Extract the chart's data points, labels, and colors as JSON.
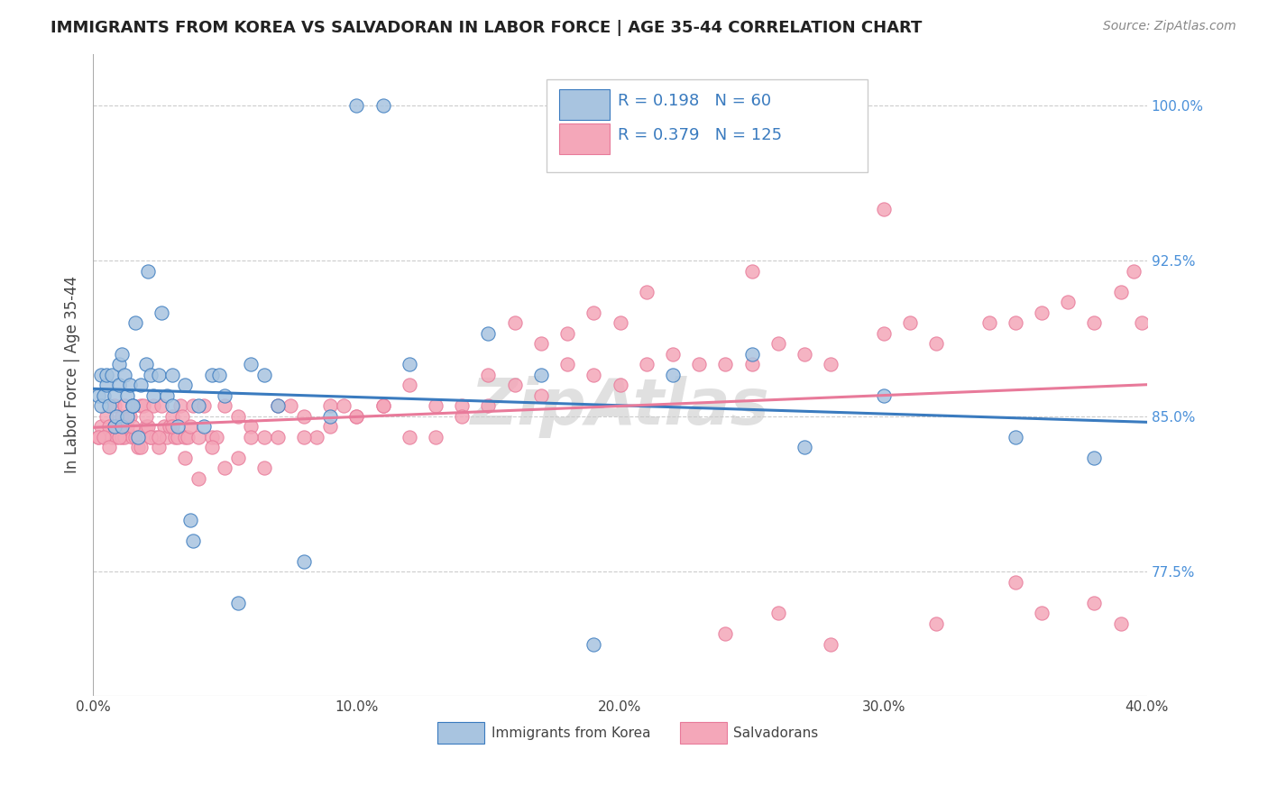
{
  "title": "IMMIGRANTS FROM KOREA VS SALVADORAN IN LABOR FORCE | AGE 35-44 CORRELATION CHART",
  "source": "Source: ZipAtlas.com",
  "ylabel": "In Labor Force | Age 35-44",
  "xlim": [
    0.0,
    0.4
  ],
  "ylim": [
    0.715,
    1.025
  ],
  "xticks": [
    0.0,
    0.05,
    0.1,
    0.15,
    0.2,
    0.25,
    0.3,
    0.35,
    0.4
  ],
  "xticklabels": [
    "0.0%",
    "",
    "10.0%",
    "",
    "20.0%",
    "",
    "30.0%",
    "",
    "40.0%"
  ],
  "yticks_right": [
    0.775,
    0.85,
    0.925,
    1.0
  ],
  "ytick_labels_right": [
    "77.5%",
    "85.0%",
    "92.5%",
    "100.0%"
  ],
  "korea_R": 0.198,
  "korea_N": 60,
  "salvador_R": 0.379,
  "salvador_N": 125,
  "korea_color": "#a8c4e0",
  "salvador_color": "#f4a7b9",
  "korea_line_color": "#3a7bbf",
  "salvador_line_color": "#e87a9a",
  "watermark": "ZipAtlas",
  "korea_scatter_x": [
    0.002,
    0.003,
    0.003,
    0.004,
    0.005,
    0.005,
    0.006,
    0.007,
    0.008,
    0.008,
    0.009,
    0.01,
    0.01,
    0.011,
    0.011,
    0.012,
    0.013,
    0.013,
    0.014,
    0.015,
    0.015,
    0.016,
    0.017,
    0.018,
    0.02,
    0.021,
    0.022,
    0.023,
    0.025,
    0.026,
    0.028,
    0.03,
    0.03,
    0.032,
    0.035,
    0.037,
    0.038,
    0.04,
    0.042,
    0.045,
    0.048,
    0.05,
    0.055,
    0.06,
    0.065,
    0.07,
    0.08,
    0.09,
    0.1,
    0.11,
    0.12,
    0.15,
    0.17,
    0.19,
    0.22,
    0.25,
    0.3,
    0.35,
    0.38,
    0.27
  ],
  "korea_scatter_y": [
    0.86,
    0.855,
    0.87,
    0.86,
    0.865,
    0.87,
    0.855,
    0.87,
    0.845,
    0.86,
    0.85,
    0.875,
    0.865,
    0.845,
    0.88,
    0.87,
    0.86,
    0.85,
    0.865,
    0.855,
    0.855,
    0.895,
    0.84,
    0.865,
    0.875,
    0.92,
    0.87,
    0.86,
    0.87,
    0.9,
    0.86,
    0.855,
    0.87,
    0.845,
    0.865,
    0.8,
    0.79,
    0.855,
    0.845,
    0.87,
    0.87,
    0.86,
    0.76,
    0.875,
    0.87,
    0.855,
    0.78,
    0.85,
    1.0,
    1.0,
    0.875,
    0.89,
    0.87,
    0.74,
    0.87,
    0.88,
    0.86,
    0.84,
    0.83,
    0.835
  ],
  "salvador_scatter_x": [
    0.002,
    0.003,
    0.004,
    0.005,
    0.006,
    0.007,
    0.008,
    0.009,
    0.01,
    0.011,
    0.011,
    0.012,
    0.013,
    0.014,
    0.015,
    0.015,
    0.016,
    0.017,
    0.018,
    0.019,
    0.02,
    0.021,
    0.022,
    0.023,
    0.024,
    0.025,
    0.026,
    0.027,
    0.028,
    0.029,
    0.03,
    0.031,
    0.032,
    0.033,
    0.034,
    0.035,
    0.036,
    0.037,
    0.038,
    0.04,
    0.042,
    0.045,
    0.047,
    0.05,
    0.055,
    0.06,
    0.065,
    0.07,
    0.075,
    0.08,
    0.085,
    0.09,
    0.095,
    0.1,
    0.11,
    0.12,
    0.13,
    0.14,
    0.15,
    0.16,
    0.17,
    0.18,
    0.19,
    0.2,
    0.21,
    0.22,
    0.23,
    0.24,
    0.25,
    0.26,
    0.27,
    0.28,
    0.3,
    0.31,
    0.32,
    0.34,
    0.35,
    0.36,
    0.37,
    0.38,
    0.39,
    0.395,
    0.398,
    0.002,
    0.004,
    0.006,
    0.008,
    0.01,
    0.012,
    0.015,
    0.018,
    0.02,
    0.022,
    0.025,
    0.03,
    0.035,
    0.04,
    0.045,
    0.05,
    0.055,
    0.06,
    0.065,
    0.07,
    0.08,
    0.09,
    0.1,
    0.11,
    0.12,
    0.13,
    0.14,
    0.15,
    0.16,
    0.17,
    0.18,
    0.19,
    0.2,
    0.21,
    0.25,
    0.3,
    0.35,
    0.38,
    0.39,
    0.36,
    0.32,
    0.28,
    0.24,
    0.26
  ],
  "salvador_scatter_y": [
    0.84,
    0.845,
    0.84,
    0.85,
    0.845,
    0.84,
    0.855,
    0.84,
    0.845,
    0.84,
    0.85,
    0.84,
    0.845,
    0.85,
    0.84,
    0.855,
    0.84,
    0.835,
    0.855,
    0.855,
    0.845,
    0.845,
    0.84,
    0.855,
    0.84,
    0.835,
    0.855,
    0.845,
    0.84,
    0.845,
    0.85,
    0.84,
    0.84,
    0.855,
    0.85,
    0.84,
    0.84,
    0.845,
    0.855,
    0.84,
    0.855,
    0.84,
    0.84,
    0.855,
    0.85,
    0.845,
    0.84,
    0.855,
    0.855,
    0.85,
    0.84,
    0.855,
    0.855,
    0.85,
    0.855,
    0.865,
    0.855,
    0.855,
    0.87,
    0.865,
    0.86,
    0.875,
    0.87,
    0.865,
    0.875,
    0.88,
    0.875,
    0.875,
    0.875,
    0.885,
    0.88,
    0.875,
    0.89,
    0.895,
    0.885,
    0.895,
    0.895,
    0.9,
    0.905,
    0.895,
    0.91,
    0.92,
    0.895,
    0.84,
    0.84,
    0.835,
    0.845,
    0.84,
    0.855,
    0.845,
    0.835,
    0.85,
    0.84,
    0.84,
    0.845,
    0.83,
    0.82,
    0.835,
    0.825,
    0.83,
    0.84,
    0.825,
    0.84,
    0.84,
    0.845,
    0.85,
    0.855,
    0.84,
    0.84,
    0.85,
    0.855,
    0.895,
    0.885,
    0.89,
    0.9,
    0.895,
    0.91,
    0.92,
    0.95,
    0.77,
    0.76,
    0.75,
    0.755,
    0.75,
    0.74,
    0.745,
    0.755
  ]
}
